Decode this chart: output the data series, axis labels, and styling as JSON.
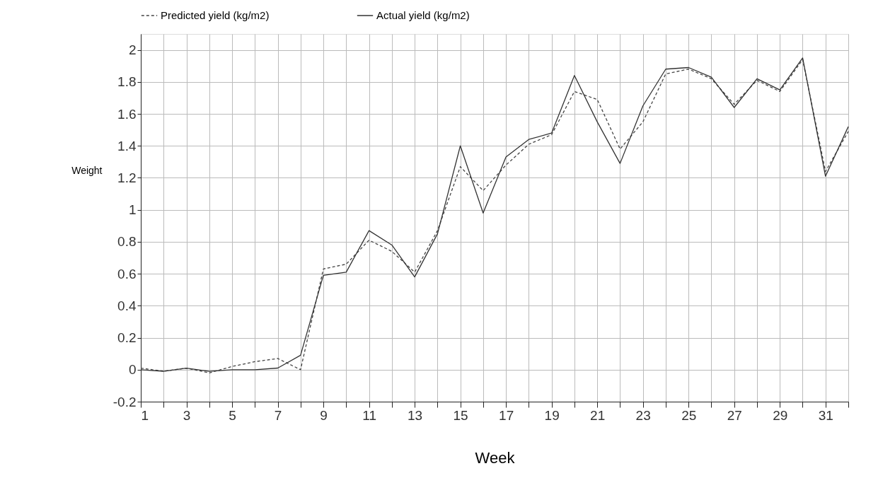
{
  "chart_data": {
    "type": "line",
    "xlabel": "Week",
    "ylabel": "Weight",
    "x": [
      1,
      2,
      3,
      4,
      5,
      6,
      7,
      8,
      9,
      10,
      11,
      12,
      13,
      14,
      15,
      16,
      17,
      18,
      19,
      20,
      21,
      22,
      23,
      24,
      25,
      26,
      27,
      28,
      29,
      30,
      31,
      32
    ],
    "series": [
      {
        "name": "Predicted yield (kg/m2)",
        "color": "#444444",
        "line_style": "dashed",
        "values": [
          0.01,
          -0.01,
          0.01,
          -0.02,
          0.02,
          0.05,
          0.07,
          0,
          0.63,
          0.66,
          0.81,
          0.74,
          0.61,
          0.87,
          1.27,
          1.12,
          1.28,
          1.41,
          1.47,
          1.74,
          1.69,
          1.38,
          1.55,
          1.85,
          1.88,
          1.82,
          1.66,
          1.81,
          1.74,
          1.94,
          1.24,
          1.49
        ]
      },
      {
        "name": "Actual yield (kg/m2)",
        "color": "#333333",
        "line_style": "solid",
        "values": [
          0,
          -0.01,
          0.01,
          -0.01,
          0,
          0,
          0.01,
          0.09,
          0.59,
          0.61,
          0.87,
          0.78,
          0.58,
          0.85,
          1.4,
          0.98,
          1.33,
          1.44,
          1.48,
          1.84,
          1.55,
          1.29,
          1.65,
          1.88,
          1.89,
          1.83,
          1.64,
          1.82,
          1.75,
          1.95,
          1.21,
          1.52
        ]
      }
    ],
    "xlim": [
      1,
      32
    ],
    "xticks": [
      1,
      {
        "value": 2,
        "label": null
      },
      3,
      {
        "value": 4,
        "label": null
      },
      5,
      {
        "value": 6,
        "label": null
      },
      7,
      {
        "value": 8,
        "label": null
      },
      9,
      {
        "value": 10,
        "label": null
      },
      11,
      {
        "value": 12,
        "label": null
      },
      13,
      {
        "value": 14,
        "label": null
      },
      15,
      {
        "value": 16,
        "label": null
      },
      17,
      {
        "value": 18,
        "label": null
      },
      19,
      {
        "value": 20,
        "label": null
      },
      21,
      {
        "value": 22,
        "label": null
      },
      23,
      {
        "value": 24,
        "label": null
      },
      25,
      {
        "value": 26,
        "label": null
      },
      27,
      {
        "value": 28,
        "label": null
      },
      29,
      {
        "value": 30,
        "label": null
      },
      31,
      {
        "value": 32,
        "label": null
      }
    ],
    "ylim": [
      -0.2,
      2.1
    ],
    "yticks": [
      -0.2,
      0,
      0.2,
      0.4,
      0.6,
      0.8,
      1,
      1.2,
      1.4,
      1.6,
      1.8,
      2
    ],
    "grid": true,
    "legend": "top left",
    "marker": "none"
  }
}
